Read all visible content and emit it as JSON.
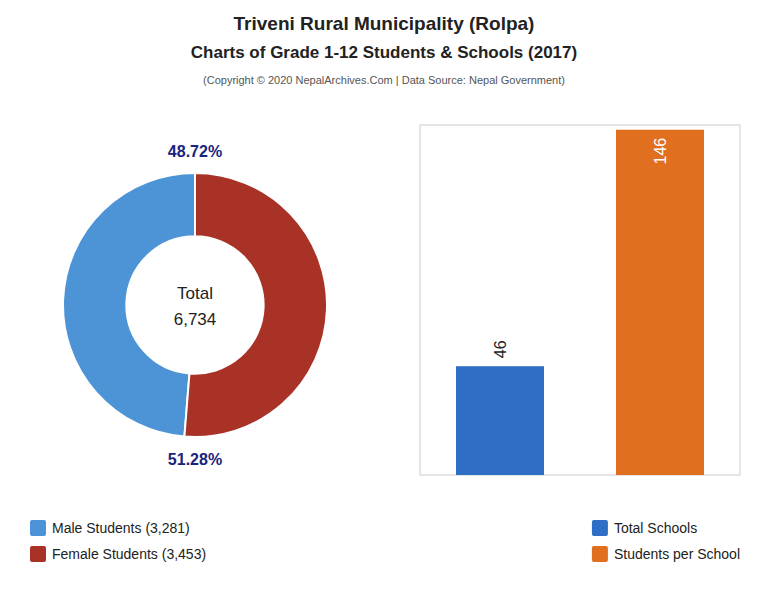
{
  "title": "Triveni Rural Municipality (Rolpa)",
  "subtitle": "Charts of Grade 1-12 Students & Schools (2017)",
  "annotations": [
    "(Copyright © 2020 NepalArchives.Com | Data Source: Nepal Government)"
  ],
  "chart_data": [
    {
      "type": "pie",
      "categories": [
        "Male Students (3,281)",
        "Female Students (3,453)"
      ],
      "values": [
        48.72,
        51.28
      ],
      "value_labels": [
        "48.72%",
        "51.28%"
      ],
      "colors": [
        "#4d94d6",
        "#a93226"
      ],
      "annotations": [
        "Total",
        "6,734"
      ],
      "data_labels": true,
      "legend": "bottom"
    },
    {
      "type": "bar",
      "categories": [
        "Total Schools",
        "Students per School"
      ],
      "values": [
        46,
        146
      ],
      "colors": [
        "#2e6ec4",
        "#e07020"
      ],
      "ylim": [
        0,
        148
      ],
      "tick_labels": false,
      "grid": false,
      "data_labels": true,
      "legend": "bottom"
    }
  ]
}
